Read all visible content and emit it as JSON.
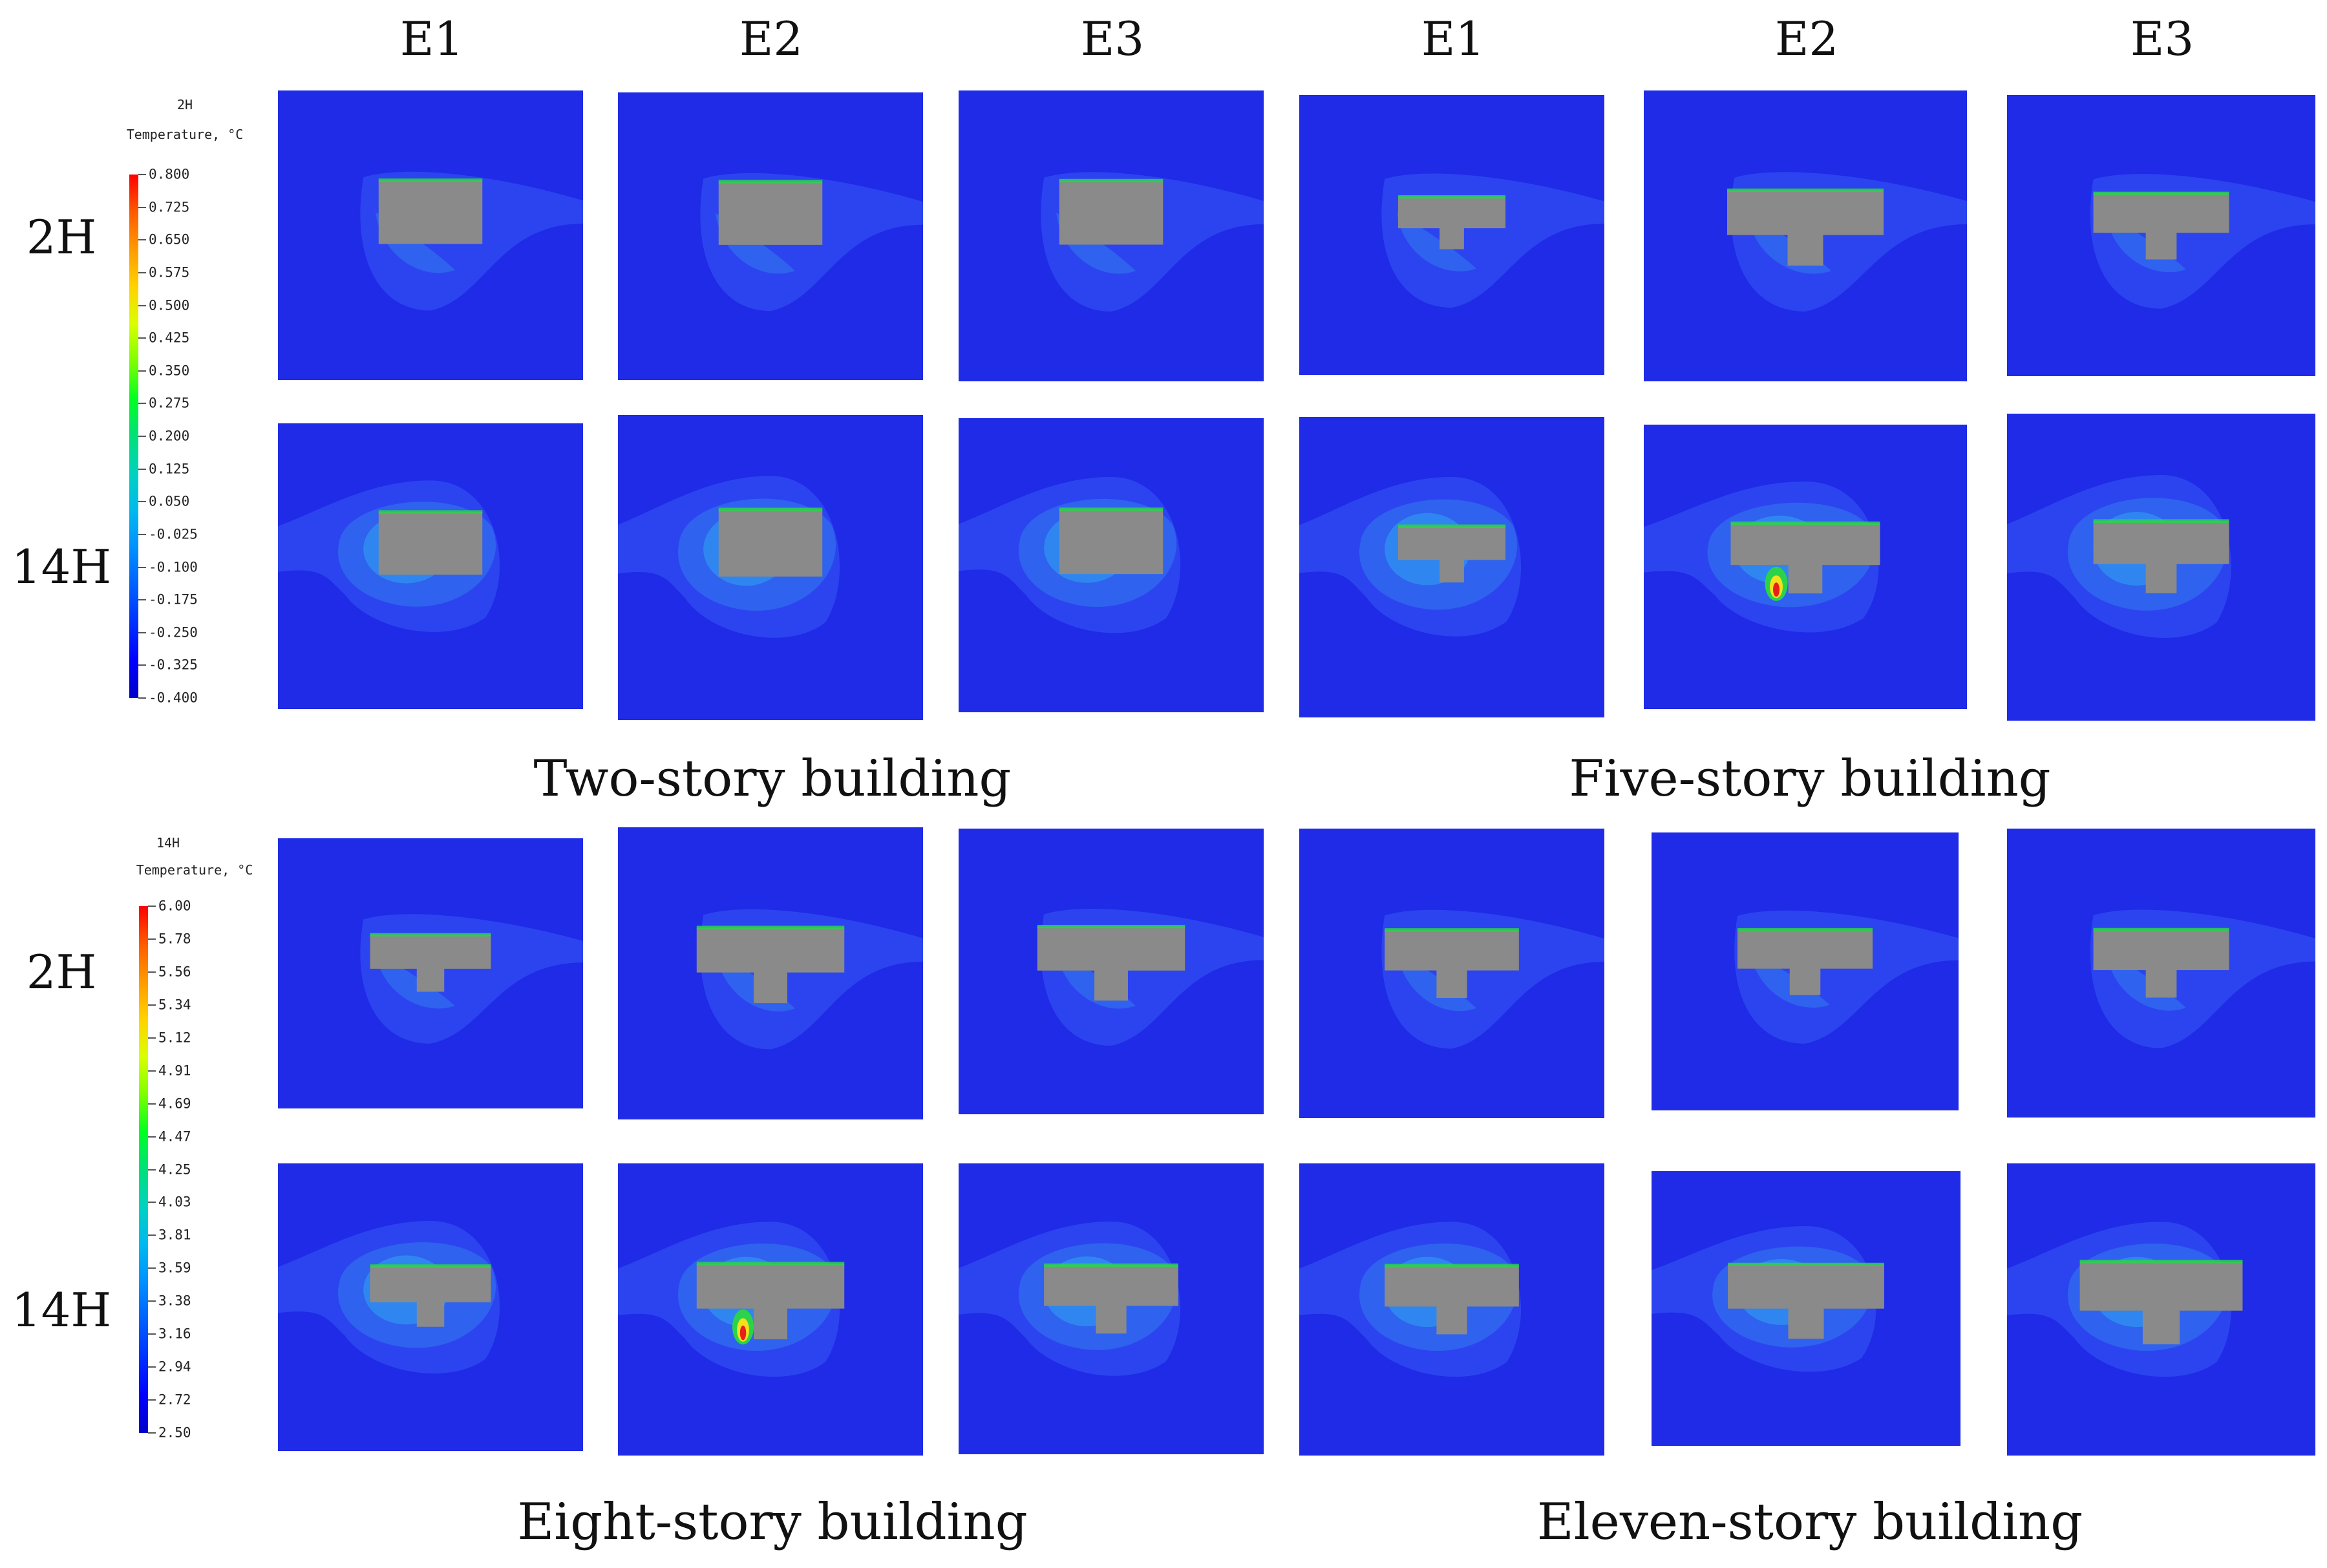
{
  "column_headers": [
    "E1",
    "E2",
    "E3",
    "E1",
    "E2",
    "E3"
  ],
  "row_headers": [
    "2H",
    "14H",
    "2H",
    "14H"
  ],
  "captions": [
    "Two-story building",
    "Five-story building",
    "Eight-story building",
    "Eleven-story building"
  ],
  "legends": [
    {
      "time": "2H",
      "variable": "Temperature, °C",
      "labels": [
        "0.800",
        "0.725",
        "0.650",
        "0.575",
        "0.500",
        "0.425",
        "0.350",
        "0.275",
        "0.200",
        "0.125",
        "0.050",
        "-0.025",
        "-0.100",
        "-0.175",
        "-0.250",
        "-0.325",
        "-0.400"
      ]
    },
    {
      "time": "14H",
      "variable": "Temperature, °C",
      "labels": [
        "6.00",
        "5.78",
        "5.56",
        "5.34",
        "5.12",
        "4.91",
        "4.69",
        "4.47",
        "4.25",
        "4.03",
        "3.81",
        "3.59",
        "3.38",
        "3.16",
        "2.94",
        "2.72",
        "2.50"
      ]
    }
  ],
  "colors": {
    "background": "#1f2be6",
    "plume_outer": "#2c44f0",
    "plume_mid": "#2f62ee",
    "plume_inner": "#2f86f0",
    "building": "#8a8a8a",
    "hot_green": "#2bd34a",
    "hot_yellow": "#f2e21d",
    "hot_red": "#e8201a",
    "colorbar": [
      "#ff0000",
      "#ff5a00",
      "#ff9a00",
      "#ffd200",
      "#d9ff00",
      "#7dff00",
      "#00ff22",
      "#00e07a",
      "#00d2c0",
      "#00b8f0",
      "#0090ff",
      "#0060ff",
      "#0030ff",
      "#0000ff",
      "#0000c8"
    ]
  }
}
